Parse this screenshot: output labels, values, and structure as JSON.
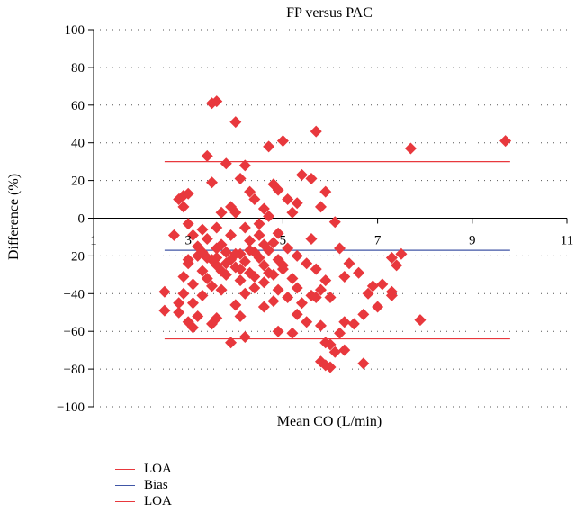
{
  "chart_data": {
    "type": "scatter",
    "title": "FP versus PAC",
    "xlabel": "Mean CO (L/min)",
    "ylabel": "Difference (%)",
    "xlim": [
      1,
      11
    ],
    "ylim": [
      -100,
      100
    ],
    "x_ticks": [
      "1",
      "3",
      "5",
      "7",
      "9",
      "11"
    ],
    "y_ticks": [
      "100",
      "80",
      "60",
      "40",
      "20",
      "0",
      "−20",
      "−40",
      "−60",
      "−80",
      "−100"
    ],
    "grid": "dotted horizontal",
    "legend_position": "bottom-left",
    "lines": [
      {
        "label": "LOA",
        "y": 30,
        "x_range": [
          2.5,
          9.8
        ],
        "color": "#e8383d"
      },
      {
        "label": "Bias",
        "y": -17,
        "x_range": [
          2.5,
          9.8
        ],
        "color": "#4056a6"
      },
      {
        "label": "LOA",
        "y": -64,
        "x_range": [
          2.5,
          9.8
        ],
        "color": "#e8383d"
      }
    ],
    "marker_color": "#e8383d",
    "points": [
      [
        3.5,
        61
      ],
      [
        3.6,
        62
      ],
      [
        4.0,
        51
      ],
      [
        5.7,
        46
      ],
      [
        4.7,
        38
      ],
      [
        5.0,
        41
      ],
      [
        7.7,
        37
      ],
      [
        9.7,
        41
      ],
      [
        3.4,
        33
      ],
      [
        3.8,
        29
      ],
      [
        4.2,
        28
      ],
      [
        5.4,
        23
      ],
      [
        5.6,
        21
      ],
      [
        4.1,
        21
      ],
      [
        3.5,
        19
      ],
      [
        4.8,
        18
      ],
      [
        5.9,
        14
      ],
      [
        2.9,
        12
      ],
      [
        3.0,
        13
      ],
      [
        2.8,
        10
      ],
      [
        4.4,
        10
      ],
      [
        5.3,
        8
      ],
      [
        5.8,
        6
      ],
      [
        2.9,
        6
      ],
      [
        3.7,
        3
      ],
      [
        4.6,
        5
      ],
      [
        5.2,
        3
      ],
      [
        6.1,
        -2
      ],
      [
        3.0,
        -3
      ],
      [
        3.3,
        -6
      ],
      [
        2.7,
        -9
      ],
      [
        3.1,
        -9
      ],
      [
        4.9,
        -8
      ],
      [
        5.6,
        -11
      ],
      [
        6.2,
        -16
      ],
      [
        3.2,
        -15
      ],
      [
        3.6,
        -16
      ],
      [
        3.8,
        -18
      ],
      [
        4.1,
        -19
      ],
      [
        4.4,
        -18
      ],
      [
        4.7,
        -17
      ],
      [
        5.1,
        -16
      ],
      [
        3.4,
        -21
      ],
      [
        3.9,
        -22
      ],
      [
        4.2,
        -23
      ],
      [
        4.5,
        -21
      ],
      [
        4.9,
        -22
      ],
      [
        5.3,
        -20
      ],
      [
        3.0,
        -24
      ],
      [
        3.6,
        -25
      ],
      [
        4.0,
        -26
      ],
      [
        4.6,
        -25
      ],
      [
        5.5,
        -24
      ],
      [
        6.4,
        -24
      ],
      [
        6.6,
        -29
      ],
      [
        7.3,
        -21
      ],
      [
        7.5,
        -19
      ],
      [
        7.4,
        -25
      ],
      [
        3.3,
        -28
      ],
      [
        3.7,
        -28
      ],
      [
        4.3,
        -29
      ],
      [
        4.8,
        -30
      ],
      [
        5.7,
        -27
      ],
      [
        2.9,
        -31
      ],
      [
        3.4,
        -32
      ],
      [
        4.1,
        -33
      ],
      [
        4.6,
        -34
      ],
      [
        5.2,
        -32
      ],
      [
        5.9,
        -33
      ],
      [
        6.3,
        -31
      ],
      [
        7.1,
        -35
      ],
      [
        3.5,
        -36
      ],
      [
        4.4,
        -37
      ],
      [
        4.9,
        -38
      ],
      [
        5.8,
        -38
      ],
      [
        6.9,
        -36
      ],
      [
        7.3,
        -39
      ],
      [
        2.5,
        -39
      ],
      [
        2.9,
        -40
      ],
      [
        3.3,
        -41
      ],
      [
        4.2,
        -40
      ],
      [
        5.1,
        -42
      ],
      [
        5.7,
        -42
      ],
      [
        6.0,
        -42
      ],
      [
        6.8,
        -40
      ],
      [
        7.3,
        -41
      ],
      [
        3.1,
        -45
      ],
      [
        4.0,
        -46
      ],
      [
        4.6,
        -47
      ],
      [
        5.4,
        -45
      ],
      [
        2.5,
        -49
      ],
      [
        2.8,
        -50
      ],
      [
        3.2,
        -52
      ],
      [
        3.6,
        -53
      ],
      [
        4.1,
        -52
      ],
      [
        5.3,
        -51
      ],
      [
        6.7,
        -51
      ],
      [
        3.0,
        -55
      ],
      [
        3.5,
        -56
      ],
      [
        5.5,
        -55
      ],
      [
        5.8,
        -57
      ],
      [
        6.3,
        -55
      ],
      [
        6.5,
        -56
      ],
      [
        7.0,
        -47
      ],
      [
        7.9,
        -54
      ],
      [
        3.1,
        -58
      ],
      [
        4.9,
        -60
      ],
      [
        5.2,
        -61
      ],
      [
        6.2,
        -61
      ],
      [
        4.2,
        -63
      ],
      [
        3.9,
        -66
      ],
      [
        5.9,
        -66
      ],
      [
        6.0,
        -67
      ],
      [
        6.1,
        -71
      ],
      [
        6.3,
        -70
      ],
      [
        5.8,
        -76
      ],
      [
        5.9,
        -78
      ],
      [
        6.0,
        -79
      ],
      [
        6.7,
        -77
      ],
      [
        3.6,
        -21
      ],
      [
        3.7,
        -14
      ],
      [
        4.3,
        -12
      ],
      [
        4.5,
        -3
      ],
      [
        4.7,
        1
      ],
      [
        3.9,
        -9
      ],
      [
        4.0,
        3
      ],
      [
        3.2,
        -20
      ],
      [
        3.4,
        -11
      ],
      [
        4.8,
        -13
      ],
      [
        5.0,
        -25
      ],
      [
        3.8,
        -30
      ],
      [
        4.5,
        -9
      ],
      [
        4.2,
        -5
      ],
      [
        3.6,
        -5
      ],
      [
        5.1,
        10
      ],
      [
        4.9,
        15
      ],
      [
        4.3,
        14
      ],
      [
        3.9,
        6
      ],
      [
        4.6,
        -14
      ],
      [
        3.3,
        -18
      ],
      [
        3.5,
        -22
      ],
      [
        3.8,
        -24
      ],
      [
        4.0,
        -19
      ],
      [
        4.3,
        -17
      ],
      [
        4.1,
        -27
      ],
      [
        4.4,
        -31
      ],
      [
        4.7,
        -29
      ],
      [
        5.3,
        -37
      ],
      [
        5.6,
        -41
      ],
      [
        3.1,
        -35
      ],
      [
        2.8,
        -45
      ],
      [
        3.0,
        -22
      ],
      [
        3.7,
        -38
      ],
      [
        4.8,
        -44
      ],
      [
        5.0,
        -27
      ]
    ]
  }
}
